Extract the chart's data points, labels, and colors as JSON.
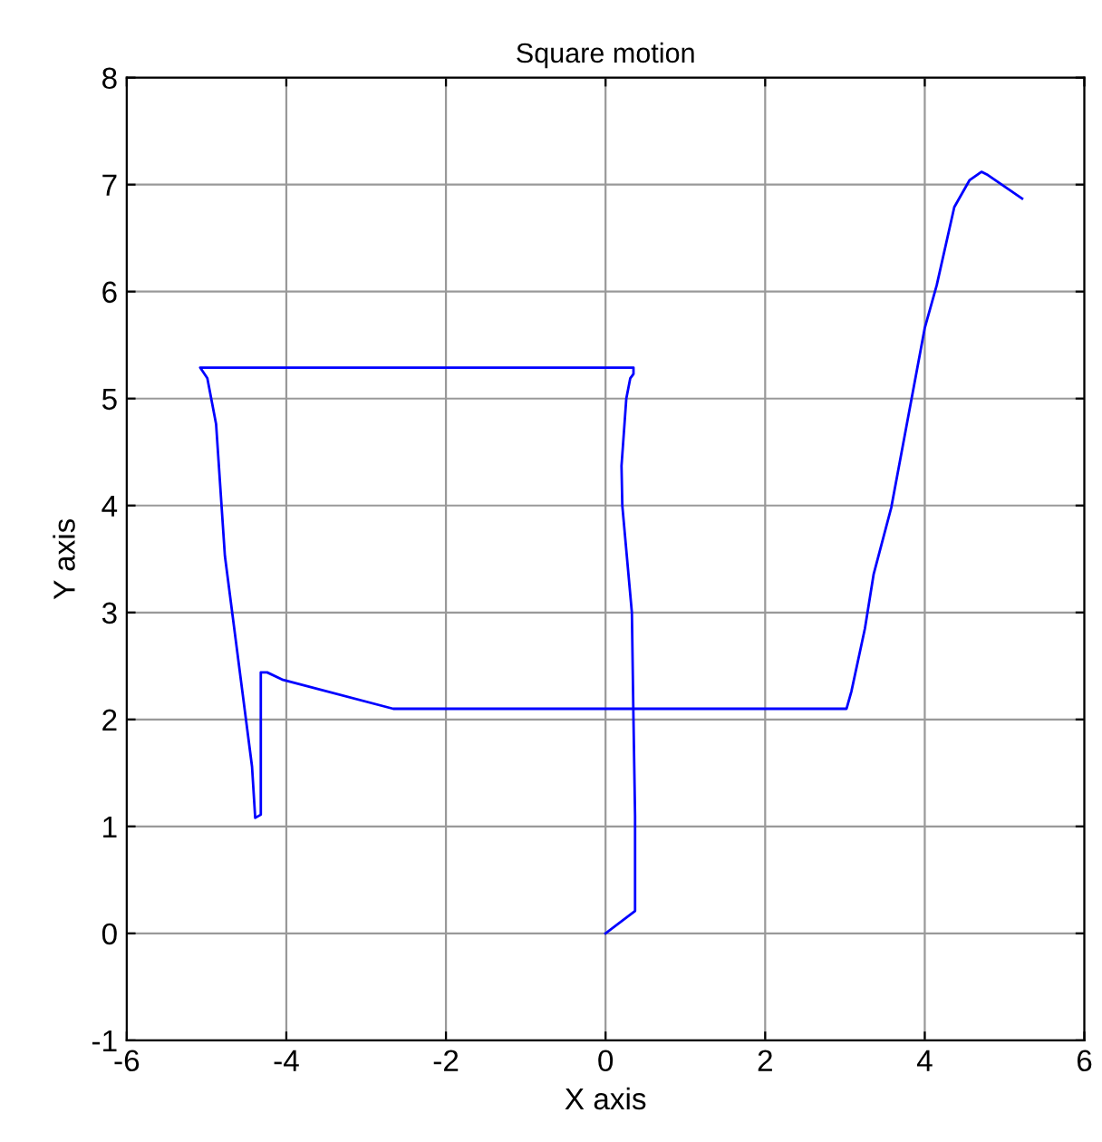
{
  "chart_data": {
    "type": "line",
    "title": "Square motion",
    "xlabel": "X axis",
    "ylabel": "Y axis",
    "series": [
      {
        "color": "#0000ff",
        "x": [
          0,
          0.37,
          0.37,
          0.35,
          0.33,
          0.21,
          0.2,
          0.26,
          0.31,
          0.35,
          0.35,
          -5.08,
          -4.99,
          -4.88,
          -4.77,
          -4.43,
          -4.39,
          -4.32,
          -4.32,
          -4.24,
          -4.04,
          -2.66,
          3.02,
          3.08,
          3.25,
          3.36,
          3.58,
          4.0,
          4.15,
          4.37,
          4.56,
          4.71,
          4.79,
          5.22
        ],
        "values": [
          0,
          0.21,
          1.1,
          2.0,
          3.0,
          4.0,
          4.37,
          5.0,
          5.19,
          5.23,
          5.29,
          5.29,
          5.19,
          4.76,
          3.53,
          1.56,
          1.08,
          1.11,
          2.44,
          2.44,
          2.37,
          2.1,
          2.1,
          2.26,
          2.85,
          3.36,
          3.98,
          5.66,
          6.06,
          6.79,
          7.04,
          7.12,
          7.09,
          6.87
        ]
      }
    ],
    "xlim": [
      -6,
      6
    ],
    "ylim": [
      -1,
      8
    ],
    "xticks": [
      -6,
      -4,
      -2,
      0,
      2,
      4,
      6
    ],
    "yticks": [
      -1,
      0,
      1,
      2,
      3,
      4,
      5,
      6,
      7,
      8
    ],
    "grid": true,
    "marker": "none",
    "line_style": "solid"
  }
}
